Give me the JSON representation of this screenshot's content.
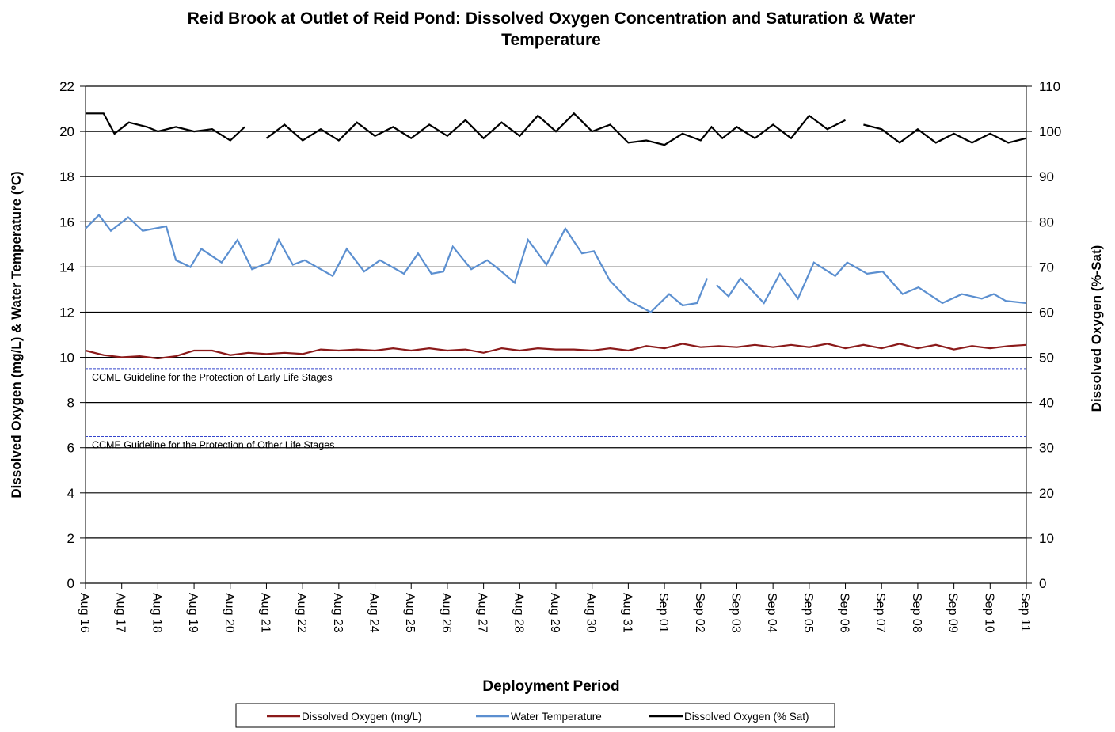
{
  "chart_data": {
    "type": "line",
    "title": "Reid Brook at Outlet of Reid Pond: Dissolved Oxygen Concentration and Saturation & Water Temperature",
    "xlabel": "Deployment Period",
    "ylabel": "Dissolved  Oxygen (mg/L) & Water Temperature (ºC)",
    "y2label": "Dissolved  Oxygen (%-Sat)",
    "xlim": [
      0,
      26
    ],
    "xticks": [
      {
        "value": 0,
        "label": "Aug 16"
      },
      {
        "value": 1,
        "label": "Aug 17"
      },
      {
        "value": 2,
        "label": "Aug 18"
      },
      {
        "value": 3,
        "label": "Aug 19"
      },
      {
        "value": 4,
        "label": "Aug 20"
      },
      {
        "value": 5,
        "label": "Aug 21"
      },
      {
        "value": 6,
        "label": "Aug 22"
      },
      {
        "value": 7,
        "label": "Aug 23"
      },
      {
        "value": 8,
        "label": "Aug 24"
      },
      {
        "value": 9,
        "label": "Aug 25"
      },
      {
        "value": 10,
        "label": "Aug 26"
      },
      {
        "value": 11,
        "label": "Aug 27"
      },
      {
        "value": 12,
        "label": "Aug 28"
      },
      {
        "value": 13,
        "label": "Aug 29"
      },
      {
        "value": 14,
        "label": "Aug 30"
      },
      {
        "value": 15,
        "label": "Aug 31"
      },
      {
        "value": 16,
        "label": "Sep 01"
      },
      {
        "value": 17,
        "label": "Sep 02"
      },
      {
        "value": 18,
        "label": "Sep 03"
      },
      {
        "value": 19,
        "label": "Sep 04"
      },
      {
        "value": 20,
        "label": "Sep 05"
      },
      {
        "value": 21,
        "label": "Sep 06"
      },
      {
        "value": 22,
        "label": "Sep 07"
      },
      {
        "value": 23,
        "label": "Sep 08"
      },
      {
        "value": 24,
        "label": "Sep 09"
      },
      {
        "value": 25,
        "label": "Sep 10"
      },
      {
        "value": 26,
        "label": "Sep 11"
      }
    ],
    "ylim": [
      0,
      22
    ],
    "yticks": [
      0,
      2,
      4,
      6,
      8,
      10,
      12,
      14,
      16,
      18,
      20,
      22
    ],
    "y2lim": [
      0,
      110
    ],
    "y2ticks": [
      0,
      10,
      20,
      30,
      40,
      50,
      60,
      70,
      80,
      90,
      100,
      110
    ],
    "grid": true,
    "annotations": [
      {
        "value": 9.5,
        "label": "CCME Guideline  for the Protection of Early Life Stages",
        "color": "#3344cc"
      },
      {
        "value": 6.5,
        "label": "CCME Guideline  for the Protection of Other Life Stages",
        "color": "#3344cc"
      }
    ],
    "series": [
      {
        "name": "Dissolved Oxygen (mg/L)",
        "color": "#8b1a1a",
        "axis": "y",
        "x": [
          0,
          0.5,
          1,
          1.5,
          2,
          2.5,
          3,
          3.5,
          4,
          4.5,
          5,
          5.5,
          6,
          6.5,
          7,
          7.5,
          8,
          8.5,
          9,
          9.5,
          10,
          10.5,
          11,
          11.5,
          12,
          12.5,
          13,
          13.5,
          14,
          14.5,
          15,
          15.5,
          16,
          16.5,
          17,
          17.5,
          18,
          18.5,
          19,
          19.5,
          20,
          20.5,
          21,
          21.5,
          22,
          22.5,
          23,
          23.5,
          24,
          24.5,
          25,
          25.5,
          26
        ],
        "values": [
          10.3,
          10.1,
          10.0,
          10.05,
          9.95,
          10.05,
          10.3,
          10.3,
          10.1,
          10.2,
          10.15,
          10.2,
          10.15,
          10.35,
          10.3,
          10.35,
          10.3,
          10.4,
          10.3,
          10.4,
          10.3,
          10.35,
          10.2,
          10.4,
          10.3,
          10.4,
          10.35,
          10.35,
          10.3,
          10.4,
          10.3,
          10.5,
          10.4,
          10.6,
          10.45,
          10.5,
          10.45,
          10.55,
          10.45,
          10.55,
          10.45,
          10.6,
          10.4,
          10.55,
          10.4,
          10.6,
          10.4,
          10.55,
          10.35,
          10.5,
          10.4,
          10.5,
          10.55
        ]
      },
      {
        "name": "Water Temperature",
        "color": "#5b8fd0",
        "axis": "y",
        "x": [
          0,
          0.37,
          0.7,
          1.18,
          1.58,
          2.23,
          2.5,
          2.9,
          3.2,
          3.76,
          4.2,
          4.6,
          5.08,
          5.34,
          5.73,
          6.06,
          6.83,
          7.22,
          7.7,
          8.14,
          8.8,
          9.19,
          9.56,
          9.89,
          10.15,
          10.66,
          11.1,
          11.42,
          11.86,
          12.23,
          12.74,
          13.26,
          13.72,
          14.05,
          14.49,
          15.03,
          15.62,
          16.13,
          16.5,
          16.9,
          17.18,
          17.3,
          17.44,
          17.77,
          18.1,
          18.75,
          19.19,
          19.69,
          20.13,
          20.72,
          21.05,
          21.6,
          22.03,
          22.58,
          23.02,
          23.68,
          24.22,
          24.77,
          25.1,
          25.43,
          26
        ],
        "values": [
          15.7,
          16.3,
          15.6,
          16.2,
          15.6,
          15.8,
          14.3,
          14.0,
          14.8,
          14.2,
          15.2,
          13.9,
          14.2,
          15.2,
          14.1,
          14.3,
          13.6,
          14.8,
          13.8,
          14.3,
          13.7,
          14.6,
          13.7,
          13.8,
          14.9,
          13.9,
          14.3,
          13.9,
          13.3,
          15.2,
          14.1,
          15.7,
          14.6,
          14.7,
          13.4,
          12.5,
          12.0,
          12.8,
          12.3,
          12.4,
          13.5,
          null,
          13.2,
          12.7,
          13.5,
          12.4,
          13.7,
          12.6,
          14.2,
          13.6,
          14.2,
          13.7,
          13.8,
          12.8,
          13.1,
          12.4,
          12.8,
          12.6,
          12.8,
          12.5,
          12.4
        ]
      },
      {
        "name": "Dissolved Oxygen (% Sat)",
        "color": "#000000",
        "axis": "y2",
        "x": [
          0,
          0.5,
          0.8,
          1.2,
          1.7,
          2,
          2.5,
          3,
          3.5,
          4,
          4.4,
          4.5,
          5,
          5.5,
          6,
          6.5,
          7,
          7.5,
          8,
          8.5,
          9,
          9.5,
          10,
          10.5,
          11,
          11.5,
          12,
          12.5,
          13,
          13.5,
          14,
          14.5,
          15,
          15.5,
          16,
          16.5,
          17,
          17.3,
          17.6,
          18,
          18.5,
          19,
          19.5,
          20,
          20.5,
          21,
          21.3,
          21.5,
          22,
          22.5,
          23,
          23.5,
          24,
          24.5,
          25,
          25.5,
          26
        ],
        "values": [
          104,
          104,
          99.5,
          102,
          101,
          100,
          101,
          100,
          100.5,
          98,
          101,
          null,
          98.5,
          101.5,
          98,
          100.5,
          98,
          102,
          99,
          101,
          98.5,
          101.5,
          99,
          102.5,
          98.5,
          102,
          99,
          103.5,
          100,
          104,
          100,
          101.5,
          97.5,
          98,
          97,
          99.5,
          98,
          101,
          98.5,
          101,
          98.5,
          101.5,
          98.5,
          103.5,
          100.5,
          102.5,
          null,
          101.5,
          100.5,
          97.5,
          100.5,
          97.5,
          99.5,
          97.5,
          99.5,
          97.5,
          98.5
        ]
      }
    ]
  }
}
